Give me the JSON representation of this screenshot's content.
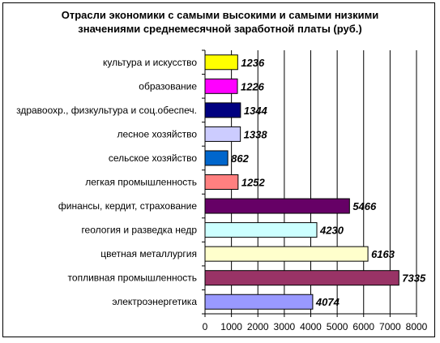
{
  "chart_data": {
    "type": "bar",
    "orientation": "horizontal",
    "title_lines": [
      "Отрасли экономики с самыми высокими и самыми низкими",
      "значениями среднемесячной заработной платы (руб.)"
    ],
    "xlabel": "",
    "ylabel": "",
    "xlim": [
      0,
      8000
    ],
    "x_ticks": [
      "0",
      "1000",
      "2000",
      "3000",
      "4000",
      "5000",
      "6000",
      "7000",
      "8000"
    ],
    "grid": "vertical",
    "legend": "none",
    "categories": [
      "культура и искусство",
      "образование",
      "здравоохр., физкультура и соц.обеспеч.",
      "лесное хозяйство",
      "сельское хозяйство",
      "легкая промышленность",
      "финансы, кердит, страхование",
      "геология и разведка недр",
      "цветная металлургия",
      "топливная промышленность",
      "электроэнергетика"
    ],
    "values": [
      1236,
      1226,
      1344,
      1338,
      862,
      1252,
      5466,
      4230,
      6163,
      7335,
      4074
    ],
    "value_labels": [
      "1236",
      "1226",
      "1344",
      "1338",
      "862",
      "1252",
      "5466",
      "4230",
      "6163",
      "7335",
      "4074"
    ],
    "colors": [
      "#FFFF00",
      "#FF00FF",
      "#000080",
      "#CCCCFF",
      "#0066CC",
      "#FF8080",
      "#660066",
      "#CCFFFF",
      "#FFFFCC",
      "#993366",
      "#9999FF"
    ]
  }
}
